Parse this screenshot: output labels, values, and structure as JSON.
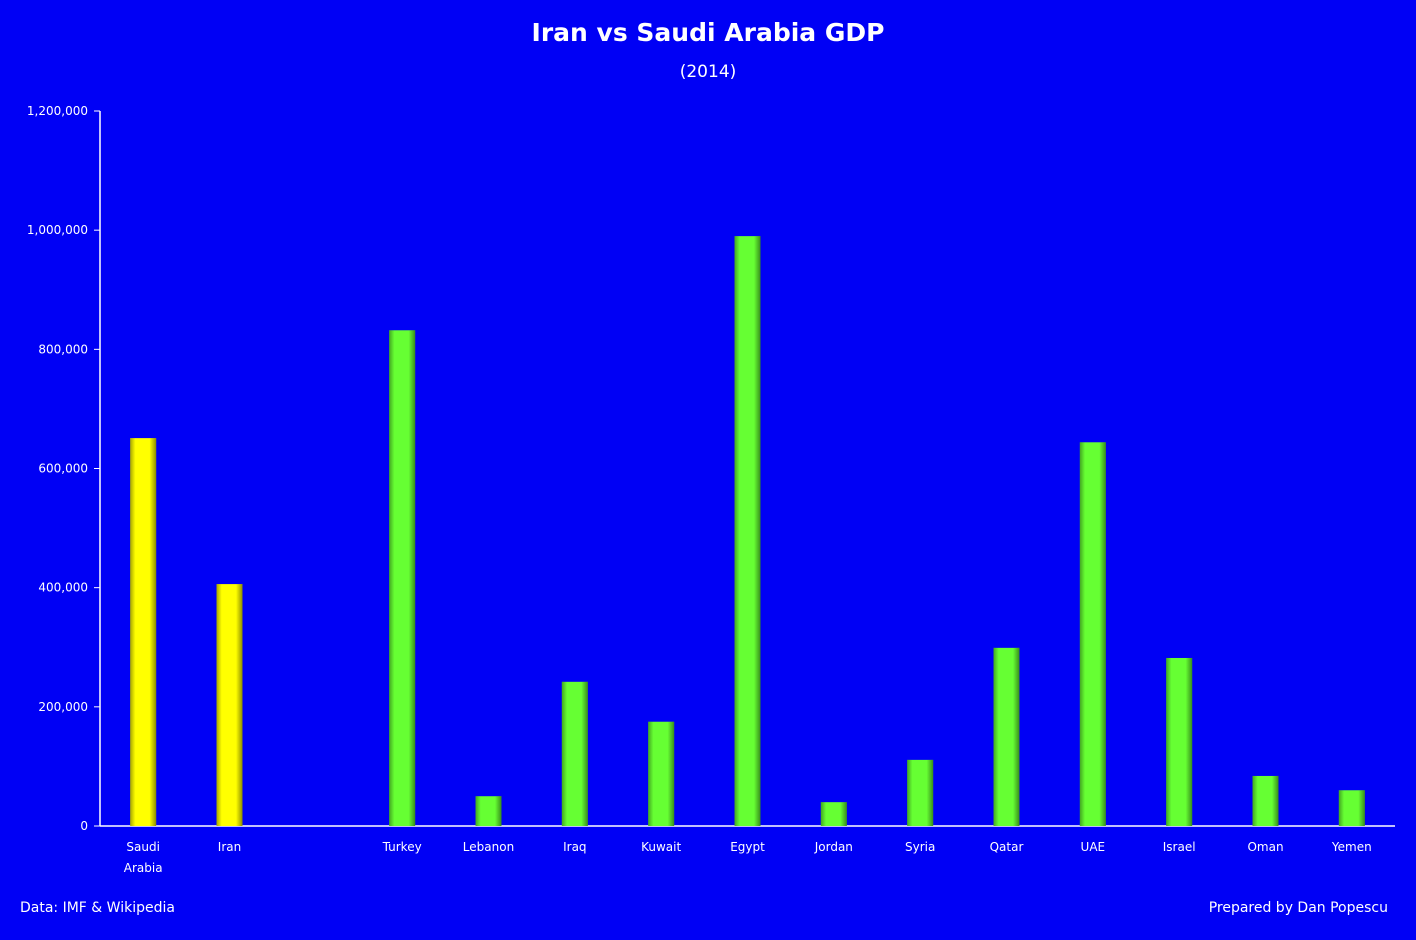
{
  "chart_data": {
    "type": "bar",
    "title": "Iran vs Saudi Arabia GDP",
    "subtitle": "(2014)",
    "xlabel": "",
    "ylabel": "",
    "ylim": [
      0,
      1200000
    ],
    "yticks": [
      0,
      200000,
      400000,
      600000,
      800000,
      1000000,
      1200000
    ],
    "ytick_labels": [
      "0",
      "200,000",
      "400,000",
      "600,000",
      "800,000",
      "1,000,000",
      "1,200,000"
    ],
    "categories": [
      "Saudi Arabia",
      "Iran",
      "",
      "Turkey",
      "Lebanon",
      "Iraq",
      "Kuwait",
      "Egypt",
      "Jordan",
      "Syria",
      "Qatar",
      "UAE",
      "Israel",
      "Oman",
      "Yemen"
    ],
    "values": [
      651000,
      406000,
      null,
      832000,
      50000,
      242000,
      175000,
      990000,
      40000,
      111000,
      299000,
      644000,
      282000,
      84000,
      60000
    ],
    "bar_colors": [
      "#ffff00",
      "#ffff00",
      null,
      "#66ff33",
      "#66ff33",
      "#66ff33",
      "#66ff33",
      "#66ff33",
      "#66ff33",
      "#66ff33",
      "#66ff33",
      "#66ff33",
      "#66ff33",
      "#66ff33",
      "#66ff33"
    ],
    "grid": false,
    "legend": "none"
  },
  "footer": {
    "source": "Data: IMF & Wikipedia",
    "credit": "Prepared by Dan Popescu"
  }
}
